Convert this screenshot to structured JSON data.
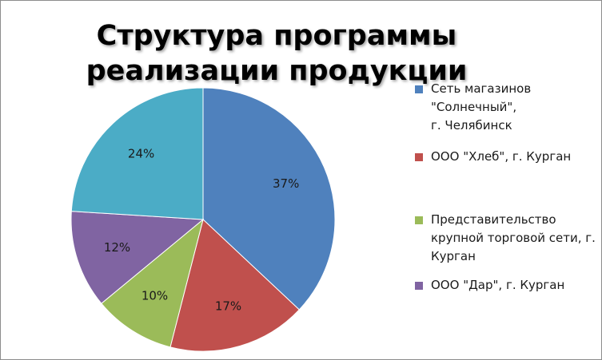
{
  "chart_data": {
    "type": "pie",
    "title": "Структура программы реализации продукции",
    "categories": [
      "Сеть магазинов \"Солнечный\",\n         г. Челябинск",
      "ООО \"Хлеб\", г. Курган",
      "Представительство крупной торговой сети, г. Курган",
      "ООО \"Дар\", г. Курган",
      ""
    ],
    "values": [
      37,
      17,
      10,
      12,
      24
    ],
    "labels": [
      "37%",
      "17%",
      "10%",
      "12%",
      "24%"
    ],
    "colors": [
      "#4f81bd",
      "#c0504d",
      "#9bbb59",
      "#8064a2",
      "#4bacc6"
    ],
    "legend_position": "right",
    "start_angle_deg": 0,
    "direction": "clockwise"
  }
}
